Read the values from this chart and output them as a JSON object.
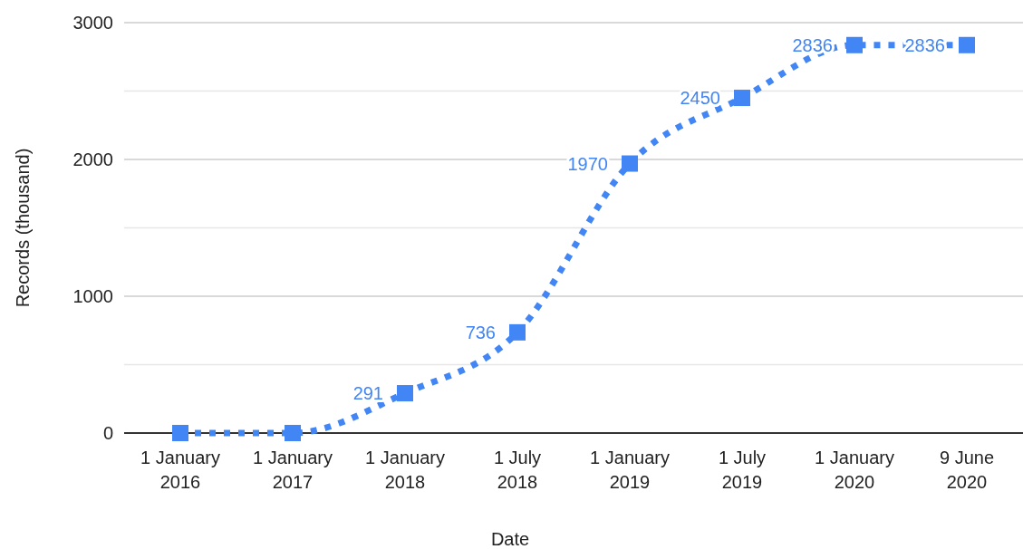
{
  "chart_data": {
    "type": "line",
    "xlabel": "Date",
    "ylabel": "Records (thousand)",
    "categories": [
      "1 January 2016",
      "1 January 2017",
      "1 January 2018",
      "1 July 2018",
      "1 January 2019",
      "1 July 2019",
      "1 January 2020",
      "9 June 2020"
    ],
    "series": [
      {
        "color": "#4285f4",
        "values": [
          0,
          0,
          291,
          736,
          1970,
          2450,
          2836,
          2836
        ],
        "value_labels": [
          null,
          null,
          "291",
          "736",
          "1970",
          "2450",
          "2836",
          "2836"
        ]
      }
    ],
    "ylim": [
      0,
      3000
    ],
    "yticks": [
      0,
      {
        "value": 500,
        "label": null
      },
      1000,
      {
        "value": 1500,
        "label": null
      },
      2000,
      {
        "value": 2500,
        "label": null
      },
      3000
    ],
    "grid": "y",
    "marker": "square",
    "line_style": "dotted"
  }
}
